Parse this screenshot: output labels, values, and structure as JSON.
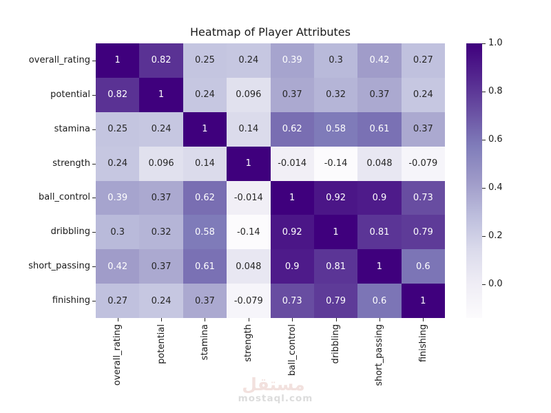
{
  "chart_data": {
    "type": "heatmap",
    "title": "Heatmap of Player Attributes",
    "categories": [
      "overall_rating",
      "potential",
      "stamina",
      "strength",
      "ball_control",
      "dribbling",
      "short_passing",
      "finishing"
    ],
    "matrix": [
      [
        1,
        0.82,
        0.25,
        0.24,
        0.39,
        0.3,
        0.42,
        0.27
      ],
      [
        0.82,
        1,
        0.24,
        0.096,
        0.37,
        0.32,
        0.37,
        0.24
      ],
      [
        0.25,
        0.24,
        1,
        0.14,
        0.62,
        0.58,
        0.61,
        0.37
      ],
      [
        0.24,
        0.096,
        0.14,
        1,
        -0.014,
        -0.14,
        0.048,
        -0.079
      ],
      [
        0.39,
        0.37,
        0.62,
        -0.014,
        1,
        0.92,
        0.9,
        0.73
      ],
      [
        0.3,
        0.32,
        0.58,
        -0.14,
        0.92,
        1,
        0.81,
        0.79
      ],
      [
        0.42,
        0.37,
        0.61,
        0.048,
        0.9,
        0.81,
        1,
        0.6
      ],
      [
        0.27,
        0.24,
        0.37,
        -0.079,
        0.73,
        0.79,
        0.6,
        1
      ]
    ],
    "cell_labels": [
      [
        "1",
        "0.82",
        "0.25",
        "0.24",
        "0.39",
        "0.3",
        "0.42",
        "0.27"
      ],
      [
        "0.82",
        "1",
        "0.24",
        "0.096",
        "0.37",
        "0.32",
        "0.37",
        "0.24"
      ],
      [
        "0.25",
        "0.24",
        "1",
        "0.14",
        "0.62",
        "0.58",
        "0.61",
        "0.37"
      ],
      [
        "0.24",
        "0.096",
        "0.14",
        "1",
        "-0.014",
        "-0.14",
        "0.048",
        "-0.079"
      ],
      [
        "0.39",
        "0.37",
        "0.62",
        "-0.014",
        "1",
        "0.92",
        "0.9",
        "0.73"
      ],
      [
        "0.3",
        "0.32",
        "0.58",
        "-0.14",
        "0.92",
        "1",
        "0.81",
        "0.79"
      ],
      [
        "0.42",
        "0.37",
        "0.61",
        "0.048",
        "0.9",
        "0.81",
        "1",
        "0.6"
      ],
      [
        "0.27",
        "0.24",
        "0.37",
        "-0.079",
        "0.73",
        "0.79",
        "0.6",
        "1"
      ]
    ],
    "vmin": -0.14,
    "vmax": 1.0,
    "colormap_name": "Purples",
    "colormap_anchors": [
      "#fcfbfd",
      "#efedf5",
      "#dadaeb",
      "#bcbddc",
      "#9e9ac8",
      "#807dba",
      "#6a51a3",
      "#54278f",
      "#3f007d"
    ],
    "colorbar_ticks": [
      "1.0",
      "0.8",
      "0.6",
      "0.4",
      "0.2",
      "0.0"
    ],
    "colorbar_tick_values": [
      1.0,
      0.8,
      0.6,
      0.4,
      0.2,
      0.0
    ],
    "legend_position": "right",
    "grid": false,
    "annotation_text_dark": "#262626",
    "annotation_text_light": "#ffffff",
    "axis_text_color": "#1a1a1a",
    "background_color": "#ffffff"
  },
  "watermark": {
    "logo_text": "مستقل",
    "domain_text": "mostaql.com",
    "logo_color": "#f2e1de",
    "domain_color": "#dcdcdc"
  }
}
